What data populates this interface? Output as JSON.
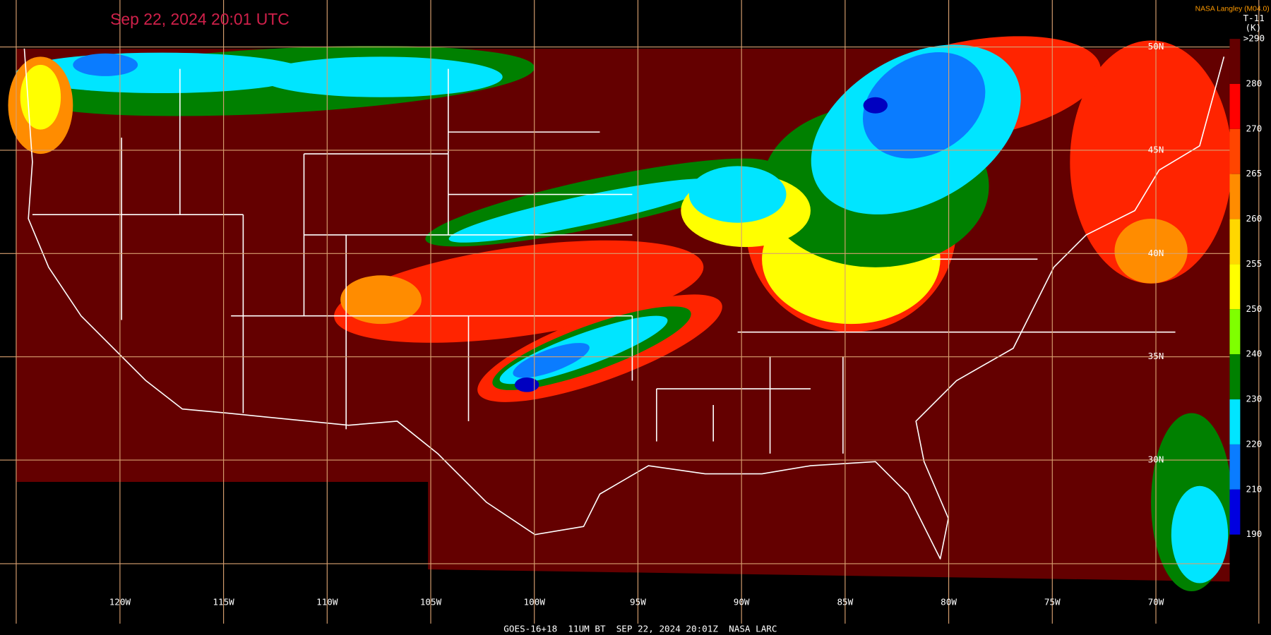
{
  "header": {
    "title": "Sep 22, 2024 20:01 UTC",
    "credit": "NASA Langley (M04.0)"
  },
  "colorbar": {
    "channel": "T-11",
    "unit": "(K)",
    "ticks": [
      {
        "value": 290,
        "label": ">290"
      },
      280,
      270,
      265,
      260,
      255,
      250,
      240,
      230,
      220,
      210,
      190
    ]
  },
  "grid": {
    "longitudes": [
      {
        "value": -120,
        "label": "120W"
      },
      {
        "value": -115,
        "label": "115W"
      },
      {
        "value": -110,
        "label": "110W"
      },
      {
        "value": -105,
        "label": "105W"
      },
      {
        "value": -100,
        "label": "100W"
      },
      {
        "value": -95,
        "label": "95W"
      },
      {
        "value": -90,
        "label": "90W"
      },
      {
        "value": -85,
        "label": "85W"
      },
      {
        "value": -80,
        "label": "80W"
      },
      {
        "value": -75,
        "label": "75W"
      },
      {
        "value": -70,
        "label": "70W"
      }
    ],
    "latitudes": [
      {
        "value": 50,
        "label": "50N"
      },
      {
        "value": 45,
        "label": "45N"
      },
      {
        "value": 40,
        "label": "40N"
      },
      {
        "value": 35,
        "label": "35N"
      },
      {
        "value": 30,
        "label": "30N"
      }
    ]
  },
  "footer": "GOES-16+18  11UM BT  SEP 22, 2024 20:01Z  NASA LARC"
}
